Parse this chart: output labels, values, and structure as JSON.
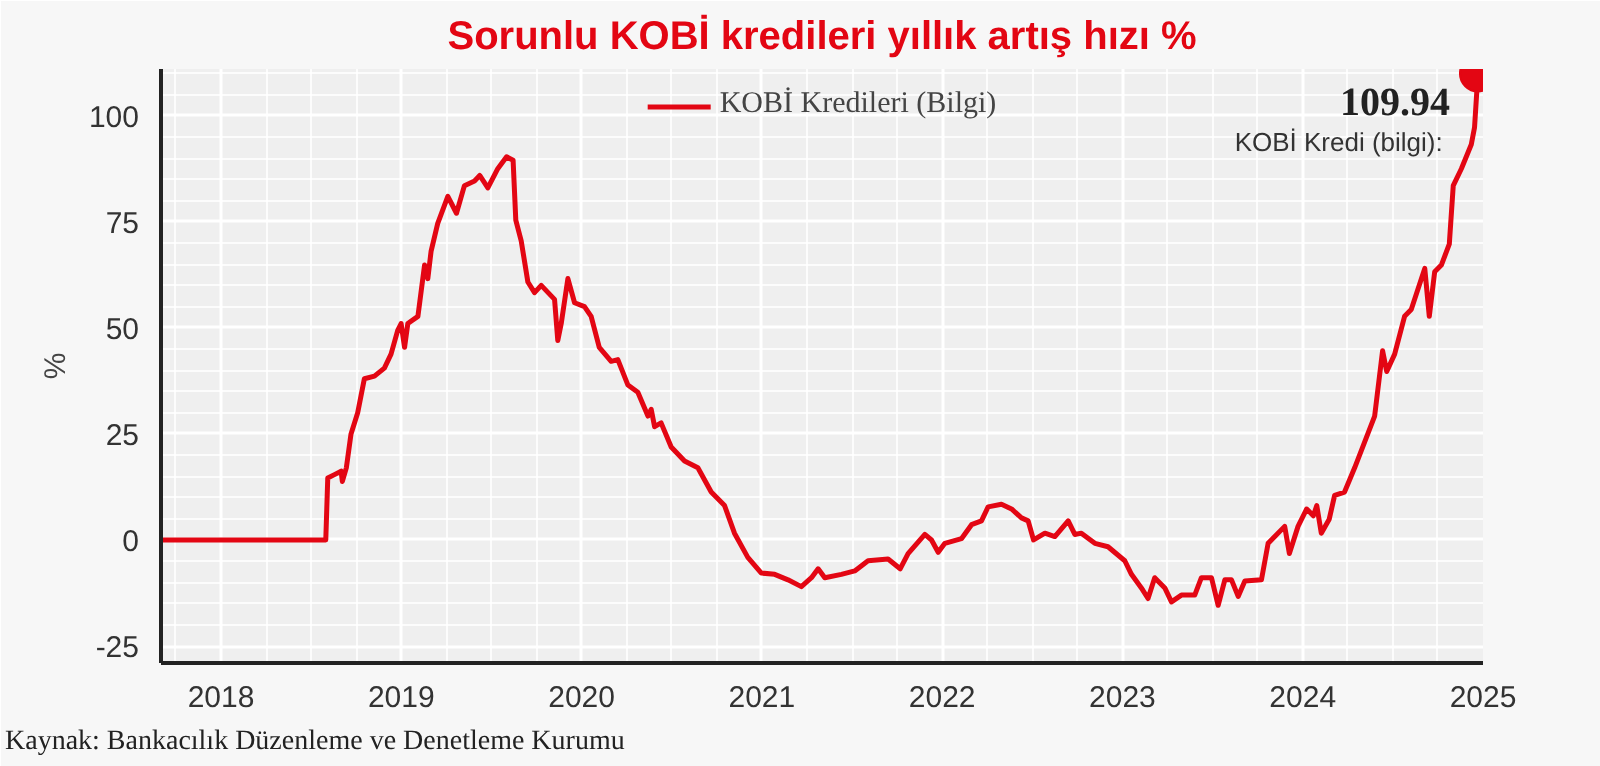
{
  "chart_data": {
    "type": "line",
    "title": "Sorunlu KOBİ kredileri yıllık artış hızı %",
    "ylabel": "%",
    "xlim": [
      2017.667,
      2025.0
    ],
    "xticks": [
      2018,
      2019,
      2020,
      2021,
      2022,
      2023,
      2024,
      2025
    ],
    "ylim": [
      -29,
      111
    ],
    "yticks": [
      -25,
      0,
      25,
      50,
      75,
      100
    ],
    "grid": true,
    "legend": "top",
    "series": [
      {
        "name": "KOBİ Kredileri (Bilgi)",
        "color": "#e30613",
        "x": [
          2017.667,
          2018.581,
          2018.592,
          2018.629,
          2018.666,
          2018.673,
          2018.695,
          2018.721,
          2018.758,
          2018.795,
          2018.851,
          2018.906,
          2018.943,
          2018.98,
          2018.999,
          2019.018,
          2019.036,
          2019.092,
          2019.129,
          2019.147,
          2019.165,
          2019.202,
          2019.258,
          2019.306,
          2019.35,
          2019.406,
          2019.435,
          2019.48,
          2019.535,
          2019.584,
          2019.62,
          2019.635,
          2019.665,
          2019.702,
          2019.739,
          2019.776,
          2019.85,
          2019.868,
          2019.887,
          2019.924,
          2019.961,
          2020.016,
          2020.053,
          2020.098,
          2020.164,
          2020.201,
          2020.257,
          2020.312,
          2020.368,
          2020.386,
          2020.405,
          2020.441,
          2020.497,
          2020.571,
          2020.645,
          2020.719,
          2020.793,
          2020.848,
          2020.922,
          2020.997,
          2021.071,
          2021.145,
          2021.219,
          2021.275,
          2021.312,
          2021.349,
          2021.441,
          2021.515,
          2021.589,
          2021.7,
          2021.767,
          2021.811,
          2021.904,
          2021.941,
          2021.978,
          2022.015,
          2022.107,
          2022.163,
          2022.218,
          2022.255,
          2022.329,
          2022.385,
          2022.44,
          2022.477,
          2022.507,
          2022.57,
          2022.625,
          2022.699,
          2022.736,
          2022.772,
          2022.847,
          2022.92,
          2023.013,
          2023.05,
          2023.105,
          2023.142,
          2023.179,
          2023.235,
          2023.272,
          2023.327,
          2023.401,
          2023.438,
          2023.494,
          2023.531,
          2023.568,
          2023.605,
          2023.642,
          2023.679,
          2023.771,
          2023.808,
          2023.845,
          2023.9,
          2023.926,
          2023.974,
          2024.022,
          2024.059,
          2024.078,
          2024.103,
          2024.147,
          2024.177,
          2024.232,
          2024.288,
          2024.362,
          2024.399,
          2024.443,
          2024.466,
          2024.51,
          2024.565,
          2024.602,
          2024.677,
          2024.702,
          2024.732,
          2024.769,
          2024.813,
          2024.835,
          2024.88,
          2024.935,
          2024.953,
          2024.972
        ],
        "values": [
          0,
          0,
          14.6,
          15.4,
          16.2,
          13.8,
          17,
          25,
          30,
          38,
          38.6,
          40.5,
          43.8,
          49.4,
          51,
          45.4,
          51,
          52.7,
          64.8,
          61.6,
          68,
          74.6,
          81,
          77,
          83.5,
          84.6,
          85.9,
          83,
          87.5,
          90.3,
          89.5,
          75.4,
          70.5,
          60.8,
          58.3,
          60,
          56.7,
          47,
          51,
          61.6,
          55.9,
          55,
          52.7,
          45.4,
          42.1,
          42.5,
          36.5,
          34.8,
          29.2,
          30.8,
          26.7,
          27.6,
          21.9,
          18.6,
          17,
          11.3,
          8.1,
          1.6,
          -4.1,
          -7.8,
          -8.1,
          -9.4,
          -11,
          -8.9,
          -6.8,
          -8.9,
          -8.1,
          -7.3,
          -4.9,
          -4.5,
          -6.8,
          -3.2,
          1.3,
          0,
          -2.9,
          -0.8,
          0.3,
          3.6,
          4.5,
          7.8,
          8.4,
          7.3,
          5.2,
          4.5,
          0,
          1.6,
          0.8,
          4.5,
          1.3,
          1.6,
          -0.8,
          -1.6,
          -4.9,
          -8.1,
          -11.3,
          -13.8,
          -8.9,
          -11.3,
          -14.6,
          -13,
          -13,
          -8.9,
          -8.9,
          -15.4,
          -9.4,
          -9.4,
          -13.3,
          -9.7,
          -9.4,
          -0.8,
          0.8,
          3.2,
          -3.2,
          3.2,
          7.3,
          5.7,
          8.1,
          1.6,
          4.9,
          10.5,
          11.3,
          17,
          25.1,
          29.2,
          44.6,
          39.7,
          43.8,
          52.7,
          54.3,
          64,
          52.7,
          63.2,
          64.8,
          69.7,
          83.5,
          87.5,
          93.2,
          97.2,
          109.94
        ]
      },
      {
        "type": "scatter",
        "color": "#e30613",
        "x": [
          2024.972
        ],
        "values": [
          109.94
        ]
      }
    ],
    "annotations": [
      {
        "text": "109.94",
        "x": 2024.972,
        "y": 109.94
      },
      {
        "text": "KOBİ  Kredi (bilgi):",
        "x": 2024.972,
        "y": 109.94
      },
      "Kaynak: Bankacılık Düzenleme ve Denetleme Kurumu"
    ]
  }
}
